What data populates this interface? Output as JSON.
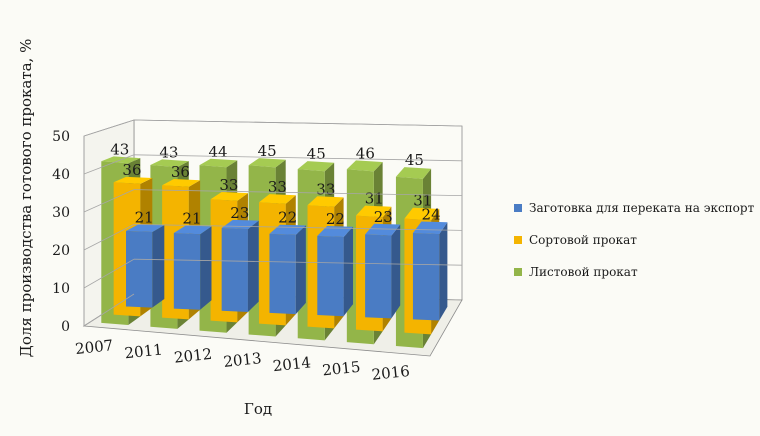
{
  "chart_data": {
    "type": "bar",
    "title": "",
    "xlabel": "Год",
    "ylabel": "Доля производства готового проката, %",
    "categories": [
      "2007",
      "2011",
      "2012",
      "2013",
      "2014",
      "2015",
      "2016"
    ],
    "ylim": [
      0,
      50
    ],
    "yticks": [
      0,
      10,
      20,
      30,
      40,
      50
    ],
    "grid": true,
    "legend_position": "right",
    "series": [
      {
        "name": "Заготовка для переката на экспорт",
        "color": "#4a7cc4",
        "values": [
          21,
          21,
          23,
          22,
          22,
          23,
          24
        ]
      },
      {
        "name": "Сортовой прокат",
        "color": "#f4b400",
        "values": [
          36,
          36,
          33,
          33,
          33,
          31,
          31
        ]
      },
      {
        "name": "Листовой прокат",
        "color": "#93b549",
        "values": [
          43,
          43,
          44,
          45,
          45,
          46,
          45
        ]
      }
    ]
  }
}
